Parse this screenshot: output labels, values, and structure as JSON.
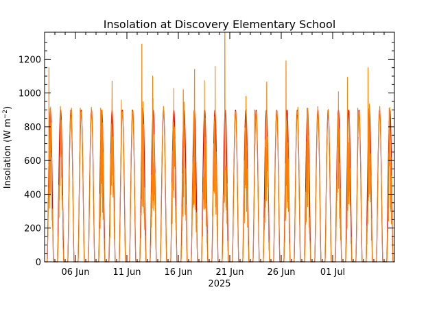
{
  "chart_data": {
    "type": "line",
    "title": "Insolation at Discovery Elementary School",
    "ylabel": "Insolation (W m",
    "ylabel_sup": "−2",
    "ylabel_close": ")",
    "xlabel_year": "2025",
    "ylim": [
      0,
      1360
    ],
    "xlim": [
      "2025-06-03",
      "2025-07-07"
    ],
    "grid": false,
    "yticks": [
      0,
      200,
      400,
      600,
      800,
      1000,
      1200
    ],
    "xticks": [
      {
        "date": "2025-06-06",
        "label": "06 Jun"
      },
      {
        "date": "2025-06-11",
        "label": "11 Jun"
      },
      {
        "date": "2025-06-16",
        "label": "16 Jun"
      },
      {
        "date": "2025-06-21",
        "label": "21 Jun"
      },
      {
        "date": "2025-06-26",
        "label": "26 Jun"
      },
      {
        "date": "2025-07-01",
        "label": "01 Jul"
      }
    ],
    "series": [
      {
        "color": "#dd0000",
        "daily_peak_approx": 900
      },
      {
        "color": "#ff7f00",
        "daily_peaks": [
          1150,
          920,
          910,
          910,
          915,
          910,
          1070,
          960,
          900,
          1290,
          1100,
          920,
          1030,
          1020,
          1140,
          1075,
          1160,
          1360,
          890,
          980,
          900,
          1065,
          900,
          1190,
          915,
          910,
          920,
          905,
          1010,
          1095,
          910
        ]
      }
    ]
  }
}
